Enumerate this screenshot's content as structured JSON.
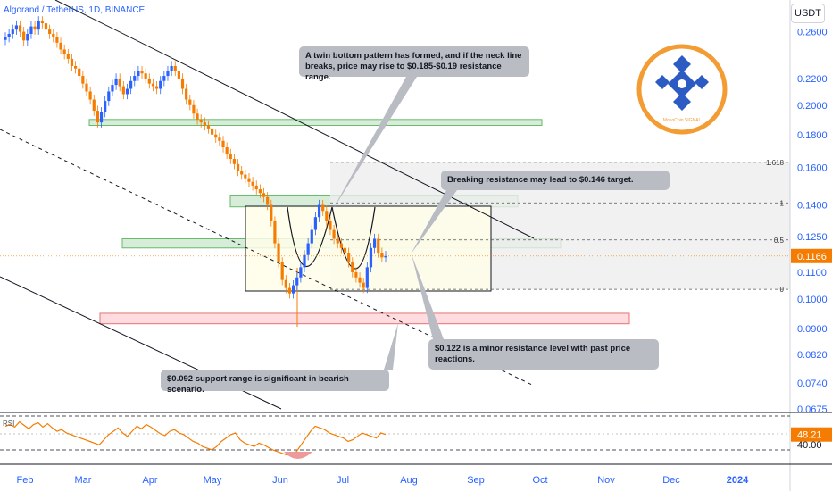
{
  "header": {
    "title": "Algorand / TetherUS, 1D, BINANCE"
  },
  "unit": "USDT",
  "colors": {
    "up": "#26a69a",
    "down": "#ef6c00",
    "wick": "#2962ff",
    "bull": "#2962ff",
    "bear": "#f57c00",
    "axis_text": "#2962ff",
    "price_badge": "#f57c00",
    "green_zone": "#c8e6c9",
    "red_zone": "#ffcdd2",
    "logo_orange": "#f39c33",
    "logo_blue": "#2d5bc4"
  },
  "chart_data": {
    "type": "candlestick",
    "y_scale": "log",
    "ylim": [
      0.0675,
      0.275
    ],
    "y_ticks": [
      "0.2600",
      "0.2200",
      "0.2000",
      "0.1800",
      "0.1600",
      "0.1400",
      "0.1250",
      "0.1100",
      "0.1000",
      "0.0900",
      "0.0820",
      "0.0740",
      "0.0675"
    ],
    "x_ticks": [
      "Feb",
      "Mar",
      "Apr",
      "May",
      "Jun",
      "Jul",
      "Aug",
      "Sep",
      "Oct",
      "Nov",
      "Dec",
      "2024"
    ],
    "last_price": "0.1166",
    "close_series": [
      0.255,
      0.258,
      0.262,
      0.266,
      0.26,
      0.252,
      0.258,
      0.265,
      0.262,
      0.27,
      0.268,
      0.262,
      0.258,
      0.255,
      0.25,
      0.244,
      0.24,
      0.236,
      0.23,
      0.228,
      0.222,
      0.216,
      0.21,
      0.204,
      0.196,
      0.188,
      0.195,
      0.203,
      0.21,
      0.215,
      0.22,
      0.214,
      0.208,
      0.212,
      0.218,
      0.222,
      0.226,
      0.224,
      0.22,
      0.216,
      0.214,
      0.212,
      0.218,
      0.222,
      0.226,
      0.23,
      0.226,
      0.22,
      0.212,
      0.204,
      0.2,
      0.194,
      0.19,
      0.188,
      0.186,
      0.184,
      0.18,
      0.178,
      0.176,
      0.172,
      0.168,
      0.165,
      0.162,
      0.158,
      0.156,
      0.154,
      0.152,
      0.15,
      0.148,
      0.146,
      0.144,
      0.14,
      0.132,
      0.122,
      0.114,
      0.107,
      0.104,
      0.102,
      0.105,
      0.108,
      0.112,
      0.117,
      0.122,
      0.128,
      0.134,
      0.14,
      0.137,
      0.132,
      0.128,
      0.124,
      0.122,
      0.12,
      0.118,
      0.114,
      0.11,
      0.108,
      0.106,
      0.104,
      0.112,
      0.12,
      0.124,
      0.118,
      0.116,
      0.1166
    ],
    "fib_levels": [
      {
        "label": "1.618",
        "value": 0.163
      },
      {
        "label": "1",
        "value": 0.141
      },
      {
        "label": "0.5",
        "value": 0.1235
      },
      {
        "label": "0",
        "value": 0.1035
      }
    ],
    "zones": [
      {
        "name": "upper-resistance",
        "low": 0.186,
        "high": 0.19
      },
      {
        "name": "neck-resistance",
        "low": 0.139,
        "high": 0.145
      },
      {
        "name": "minor-resistance",
        "low": 0.12,
        "high": 0.124
      },
      {
        "name": "support",
        "low": 0.0915,
        "high": 0.095
      }
    ],
    "rsi": {
      "value": "48.21",
      "ref_label": "40.00",
      "series": [
        58,
        60,
        57,
        63,
        59,
        55,
        60,
        62,
        57,
        61,
        56,
        52,
        54,
        50,
        48,
        46,
        44,
        42,
        40,
        38,
        36,
        42,
        48,
        52,
        56,
        50,
        46,
        52,
        58,
        55,
        60,
        57,
        53,
        49,
        47,
        52,
        54,
        50,
        48,
        44,
        40,
        38,
        34,
        32,
        30,
        34,
        40,
        44,
        48,
        50,
        42,
        38,
        36,
        34,
        38,
        36,
        33,
        30,
        28,
        26,
        24,
        26,
        28,
        36,
        44,
        52,
        58,
        56,
        54,
        50,
        48,
        46,
        44,
        40,
        42,
        46,
        50,
        48,
        46,
        44,
        50,
        48.21
      ]
    },
    "annotations": [
      "A twin bottom pattern has formed, and if the neck line breaks, price may rise to $0.185-$0.19 resistance range.",
      "Breaking resistance may lead to $0.146 target.",
      "$0.122 is a minor resistance level with past price reactions.",
      "$0.092 support range is significant in bearish scenario."
    ]
  },
  "rsi_label": "RSI",
  "logo": {
    "text": "MonoCoin SIGNAL"
  }
}
